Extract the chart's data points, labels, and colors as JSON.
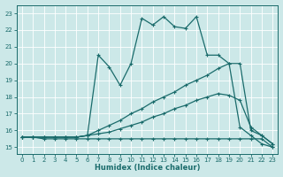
{
  "xlabel": "Humidex (Indice chaleur)",
  "xlim": [
    -0.5,
    23.5
  ],
  "ylim": [
    14.6,
    23.5
  ],
  "xticks": [
    0,
    1,
    2,
    3,
    4,
    5,
    6,
    7,
    8,
    9,
    10,
    11,
    12,
    13,
    14,
    15,
    16,
    17,
    18,
    19,
    20,
    21,
    22,
    23
  ],
  "yticks": [
    15,
    16,
    17,
    18,
    19,
    20,
    21,
    22,
    23
  ],
  "bg_color": "#cce8e8",
  "line_color": "#1a6b6b",
  "grid_color": "#b8d8d8",
  "lines": [
    {
      "x": [
        0,
        1,
        2,
        3,
        4,
        5,
        6,
        7,
        8,
        9,
        10,
        11,
        12,
        13,
        14,
        15,
        16,
        17,
        18,
        19,
        20,
        21,
        22,
        23
      ],
      "y": [
        15.6,
        15.6,
        15.5,
        15.5,
        15.5,
        15.5,
        15.5,
        15.5,
        15.5,
        15.5,
        15.5,
        15.5,
        15.5,
        15.5,
        15.5,
        15.5,
        15.5,
        15.5,
        15.5,
        15.5,
        15.5,
        15.5,
        15.5,
        15.0
      ]
    },
    {
      "x": [
        0,
        1,
        2,
        3,
        4,
        5,
        6,
        7,
        8,
        9,
        10,
        11,
        12,
        13,
        14,
        15,
        16,
        17,
        18,
        19,
        20,
        21,
        22,
        23
      ],
      "y": [
        15.6,
        15.6,
        15.6,
        15.6,
        15.6,
        15.6,
        15.7,
        15.8,
        15.9,
        16.1,
        16.3,
        16.5,
        16.8,
        17.0,
        17.3,
        17.5,
        17.8,
        18.0,
        18.2,
        18.1,
        17.8,
        16.2,
        15.7,
        15.2
      ]
    },
    {
      "x": [
        0,
        1,
        2,
        3,
        4,
        5,
        6,
        7,
        8,
        9,
        10,
        11,
        12,
        13,
        14,
        15,
        16,
        17,
        18,
        19,
        20,
        21,
        22,
        23
      ],
      "y": [
        15.6,
        15.6,
        15.6,
        15.6,
        15.6,
        15.6,
        15.7,
        16.0,
        16.3,
        16.6,
        17.0,
        17.3,
        17.7,
        18.0,
        18.3,
        18.7,
        19.0,
        19.3,
        19.7,
        20.0,
        20.0,
        16.0,
        15.7,
        15.2
      ]
    },
    {
      "x": [
        0,
        1,
        2,
        3,
        4,
        5,
        6,
        7,
        8,
        9,
        10,
        11,
        12,
        13,
        14,
        15,
        16,
        17,
        18,
        19,
        20,
        21,
        22,
        23
      ],
      "y": [
        15.6,
        15.6,
        15.6,
        15.6,
        15.6,
        15.6,
        15.7,
        20.5,
        19.8,
        18.7,
        20.0,
        22.7,
        22.3,
        22.8,
        22.2,
        22.1,
        22.8,
        20.5,
        20.5,
        20.0,
        16.2,
        15.7,
        15.2,
        15.0
      ]
    }
  ]
}
